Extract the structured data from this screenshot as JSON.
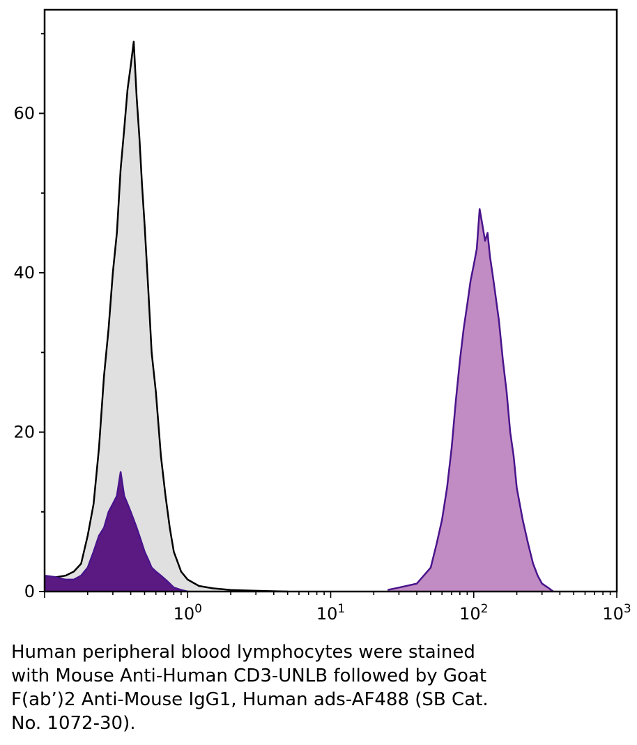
{
  "chart_data": {
    "type": "area",
    "x_scale": "log",
    "xlim": [
      0.1,
      1000
    ],
    "ylim": [
      0,
      73
    ],
    "y_ticks": [
      0,
      20,
      40,
      60
    ],
    "y_tick_labels": [
      "0",
      "20",
      "40",
      "60"
    ],
    "x_ticks": [
      1,
      10,
      100,
      1000
    ],
    "x_tick_labels": [
      {
        "base": "10",
        "exp": "0"
      },
      {
        "base": "10",
        "exp": "1"
      },
      {
        "base": "10",
        "exp": "2"
      },
      {
        "base": "10",
        "exp": "3"
      }
    ],
    "grid": false,
    "series": [
      {
        "fill": "#e0e0e0",
        "stroke": "#000000",
        "x": [
          0.1,
          0.12,
          0.14,
          0.16,
          0.18,
          0.2,
          0.22,
          0.24,
          0.26,
          0.28,
          0.3,
          0.32,
          0.34,
          0.36,
          0.38,
          0.4,
          0.42,
          0.44,
          0.46,
          0.48,
          0.5,
          0.53,
          0.56,
          0.6,
          0.65,
          0.7,
          0.75,
          0.8,
          0.9,
          1.0,
          1.2,
          1.5,
          2.0,
          3.0,
          5.0
        ],
        "y": [
          1.5,
          1.8,
          2.0,
          2.5,
          3.5,
          7,
          11,
          18,
          27,
          33,
          40,
          45,
          53,
          58,
          63,
          66,
          69,
          62,
          57,
          51,
          46,
          38,
          30,
          25,
          17,
          12,
          8,
          5,
          2.5,
          1.5,
          0.7,
          0.4,
          0.2,
          0.1,
          0
        ]
      },
      {
        "fill": "#5b1a82",
        "stroke": "#4a148c",
        "x": [
          0.1,
          0.12,
          0.14,
          0.16,
          0.18,
          0.2,
          0.22,
          0.24,
          0.26,
          0.28,
          0.3,
          0.32,
          0.34,
          0.36,
          0.38,
          0.4,
          0.42,
          0.44,
          0.46,
          0.48,
          0.5,
          0.53,
          0.56,
          0.6,
          0.65,
          0.7,
          0.75,
          0.8,
          0.9,
          1.0
        ],
        "y": [
          2.0,
          1.8,
          1.5,
          1.5,
          2.0,
          3.0,
          5,
          7,
          8,
          10,
          11,
          12,
          15,
          12,
          11,
          10,
          9,
          8,
          7,
          6,
          5,
          4,
          3,
          2.5,
          2,
          1.5,
          1.0,
          0.5,
          0.2,
          0
        ]
      },
      {
        "fill": "#c08cc3",
        "stroke": "#4a148c",
        "x": [
          25,
          30,
          40,
          50,
          55,
          60,
          65,
          70,
          75,
          80,
          85,
          90,
          95,
          100,
          105,
          110,
          115,
          120,
          125,
          130,
          135,
          140,
          150,
          160,
          170,
          180,
          190,
          200,
          220,
          240,
          260,
          280,
          300,
          330,
          360
        ],
        "y": [
          0.2,
          0.5,
          1,
          3,
          6,
          9,
          13,
          18,
          24,
          29,
          33,
          36,
          39,
          41,
          43,
          48,
          46,
          44,
          45,
          42,
          40,
          38,
          34,
          29,
          25,
          20,
          17,
          13,
          9,
          6,
          3.5,
          2,
          1.0,
          0.5,
          0
        ]
      }
    ]
  },
  "caption": {
    "line1": "Human peripheral blood lymphocytes were stained",
    "line2": "with Mouse Anti-Human CD3-UNLB followed by Goat",
    "line3": "F(ab’)2 Anti-Mouse IgG1, Human ads-AF488 (SB Cat.",
    "line4": "No. 1072-30)."
  }
}
